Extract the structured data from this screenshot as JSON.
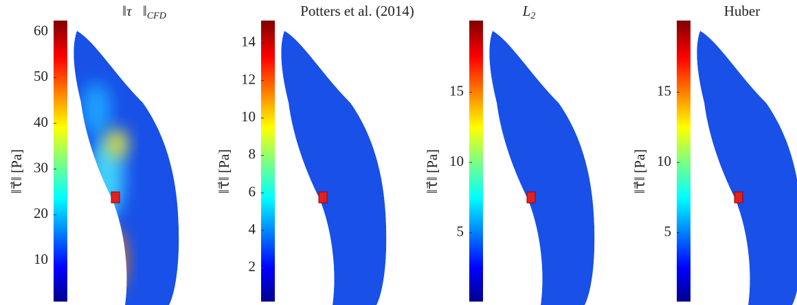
{
  "chart_data": [
    {
      "type": "colorbar",
      "title": "‖τ⃗‖",
      "title_sub": "CFD",
      "ylabel": "‖τ⃗‖ [Pa]",
      "ylim": [
        1,
        62.5
      ],
      "yticks": [
        10,
        20,
        30,
        40,
        50,
        60
      ]
    },
    {
      "type": "colorbar",
      "title": "Potters et al. (2014)",
      "ylabel": "‖τ⃗‖ [Pa]",
      "ylim": [
        0.2,
        15.2
      ],
      "yticks": [
        2,
        4,
        6,
        8,
        10,
        12,
        14
      ]
    },
    {
      "type": "colorbar",
      "title": "L",
      "title_sub": "2",
      "ylabel": "‖τ⃗‖ [Pa]",
      "ylim": [
        0.1,
        20.1
      ],
      "yticks": [
        5,
        10,
        15
      ]
    },
    {
      "type": "colorbar",
      "title": "Huber",
      "ylabel": "‖τ⃗‖ [Pa]",
      "ylim": [
        0.1,
        20.1
      ],
      "yticks": [
        5,
        10,
        15
      ]
    }
  ]
}
